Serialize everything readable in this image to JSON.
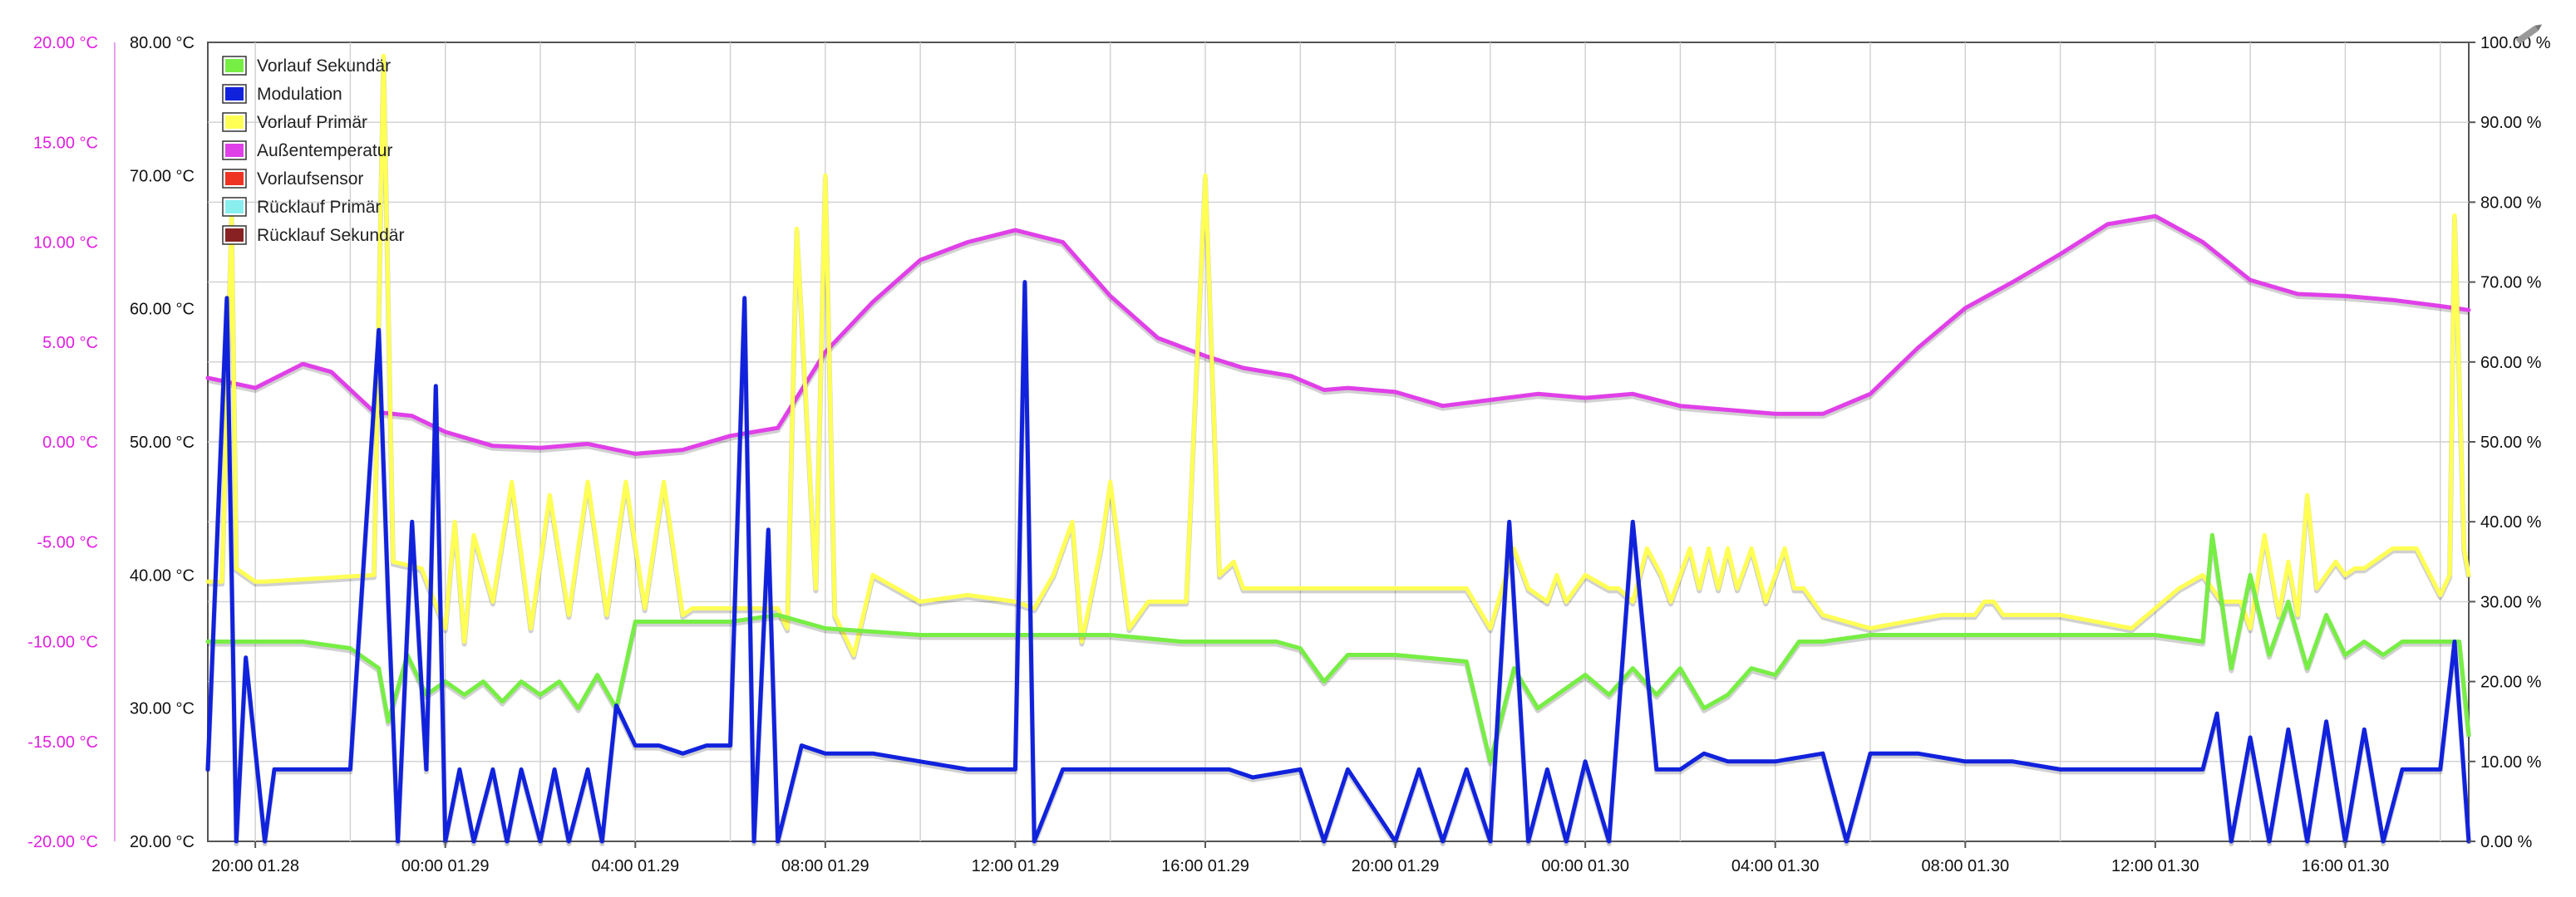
{
  "chart_data": {
    "type": "line",
    "title": "",
    "grid": true,
    "legend_placement": "top-left",
    "x_tick_labels": [
      "20:00 01.28",
      "00:00 01.29",
      "04:00 01.29",
      "08:00 01.29",
      "12:00 01.29",
      "16:00 01.29",
      "20:00 01.29",
      "00:00 01.30",
      "04:00 01.30",
      "08:00 01.30",
      "12:00 01.30",
      "16:00 01.30"
    ],
    "x_unit": "hours since 18:00 01.28",
    "xlim": [
      1.0,
      48.6
    ],
    "axes": {
      "outside_left": {
        "range": [
          -20,
          20
        ],
        "ticks": [
          "20.00 °C",
          "15.00 °C",
          "10.00 °C",
          "5.00 °C",
          "0.00 °C",
          "-5.00 °C",
          "-10.00 °C",
          "-15.00 °C",
          "-20.00 °C"
        ],
        "color": "#e020e0"
      },
      "inside_left": {
        "range": [
          20,
          80
        ],
        "ticks": [
          "80.00 °C",
          "70.00 °C",
          "60.00 °C",
          "50.00 °C",
          "40.00 °C",
          "30.00 °C",
          "20.00 °C"
        ]
      },
      "right": {
        "range": [
          0,
          100
        ],
        "ticks": [
          "100.00 %",
          "90.00 %",
          "80.00 %",
          "70.00 %",
          "60.00 %",
          "50.00 %",
          "40.00 %",
          "30.00 %",
          "20.00 %",
          "10.00 %",
          "0.00 %"
        ]
      }
    },
    "legend": [
      {
        "name": "Vorlauf Sekundär",
        "color": "#77ee44"
      },
      {
        "name": "Modulation",
        "color": "#1122dd"
      },
      {
        "name": "Vorlauf Primär",
        "color": "#ffff55"
      },
      {
        "name": "Außentemperatur",
        "color": "#e040e8"
      },
      {
        "name": "Vorlaufsensor",
        "color": "#ee3322"
      },
      {
        "name": "Rücklauf Primär",
        "color": "#88eeee"
      },
      {
        "name": "Rücklauf Sekundär",
        "color": "#882222"
      }
    ],
    "series": [
      {
        "name": "Außentemperatur",
        "color": "#e040e8",
        "axis": "outside_left",
        "unit": "°C",
        "x": [
          1.0,
          2.0,
          3.0,
          3.6,
          4.5,
          5.3,
          6.0,
          7.0,
          8.0,
          9.0,
          10.0,
          11.0,
          12.0,
          13.0,
          14.0,
          15.0,
          16.0,
          17.0,
          18.0,
          19.0,
          20.0,
          21.0,
          22.0,
          22.8,
          23.8,
          24.5,
          25.0,
          26.0,
          27.0,
          28.0,
          29.0,
          30.0,
          31.0,
          32.0,
          33.0,
          34.0,
          35.0,
          36.0,
          37.0,
          38.0,
          39.0,
          40.0,
          41.0,
          42.0,
          43.0,
          44.0,
          45.0,
          46.0,
          47.0,
          48.0,
          48.6
        ],
        "y": [
          3.2,
          2.7,
          3.9,
          3.5,
          1.5,
          1.3,
          0.5,
          -0.2,
          -0.3,
          -0.1,
          -0.6,
          -0.4,
          0.3,
          0.7,
          4.5,
          7.0,
          9.1,
          10.0,
          10.6,
          10.0,
          7.3,
          5.2,
          4.3,
          3.7,
          3.3,
          2.6,
          2.7,
          2.5,
          1.8,
          2.1,
          2.4,
          2.2,
          2.4,
          1.8,
          1.6,
          1.4,
          1.4,
          2.4,
          4.7,
          6.7,
          8.0,
          9.4,
          10.9,
          11.3,
          10.0,
          8.1,
          7.4,
          7.3,
          7.1,
          6.8,
          6.6
        ]
      },
      {
        "name": "Vorlauf Primär",
        "color": "#ffff55",
        "axis": "inside_left",
        "unit": "°C",
        "x": [
          1.0,
          1.3,
          1.5,
          1.6,
          1.8,
          2.0,
          2.2,
          4.5,
          4.7,
          4.9,
          5.5,
          6.0,
          6.2,
          6.4,
          6.6,
          7.0,
          7.4,
          7.8,
          8.2,
          8.6,
          9.0,
          9.4,
          9.8,
          10.2,
          10.6,
          11.0,
          11.2,
          11.5,
          12.0,
          12.5,
          13.0,
          13.2,
          13.4,
          13.8,
          14.0,
          14.2,
          14.6,
          15.0,
          16.0,
          17.0,
          18.0,
          18.4,
          18.8,
          19.2,
          19.4,
          19.8,
          20.0,
          20.4,
          20.8,
          21.2,
          21.6,
          22.0,
          22.3,
          22.6,
          22.8,
          22.9,
          23.0,
          23.2,
          23.4,
          23.5,
          23.6,
          23.8,
          24.5,
          26.0,
          27.5,
          28.0,
          28.5,
          28.8,
          29.2,
          29.4,
          29.6,
          30.0,
          30.5,
          30.7,
          31.0,
          31.3,
          31.6,
          31.8,
          32.2,
          32.4,
          32.6,
          32.8,
          33.0,
          33.2,
          33.5,
          33.8,
          34.2,
          34.4,
          34.6,
          34.8,
          35.0,
          36.0,
          37.5,
          38.2,
          38.4,
          38.6,
          38.8,
          39.0,
          40.0,
          41.5,
          42.5,
          43.0,
          43.2,
          43.4,
          43.6,
          43.8,
          44.0,
          44.3,
          44.6,
          44.8,
          45.0,
          45.2,
          45.4,
          45.6,
          45.8,
          46.0,
          46.2,
          46.4,
          46.6,
          46.8,
          47.0,
          47.5,
          48.0,
          48.2,
          48.3,
          48.5,
          48.6
        ],
        "y": [
          39.5,
          39.5,
          67,
          40.5,
          40,
          39.5,
          39.5,
          40,
          79,
          41,
          40.5,
          36,
          44,
          35,
          43,
          38,
          47,
          36,
          46,
          37,
          47,
          37,
          47,
          37.5,
          47,
          37,
          37.5,
          37.5,
          37.5,
          37.5,
          37.5,
          36,
          66,
          39,
          70,
          37,
          34,
          40,
          38,
          38.5,
          38,
          37.5,
          40,
          44,
          35,
          42,
          47,
          36,
          38,
          38,
          38,
          70,
          40,
          41,
          39,
          39,
          39,
          39,
          39,
          39,
          39,
          39,
          39,
          39,
          39,
          36,
          42,
          39,
          38,
          40,
          38,
          40,
          39,
          39,
          38,
          42,
          40,
          38,
          42,
          39,
          42,
          39,
          42,
          39,
          42,
          38,
          42,
          39,
          39,
          38,
          37,
          36,
          37,
          37,
          38,
          38,
          37,
          37,
          37,
          36,
          39,
          40,
          39,
          38,
          38,
          38,
          36,
          43,
          37,
          41,
          37,
          46,
          39,
          40,
          41,
          40,
          40.5,
          40.5,
          41,
          41.5,
          42,
          42,
          38.5,
          40,
          67,
          42,
          40
        ]
      },
      {
        "name": "Vorlauf Sekundär",
        "color": "#77ee44",
        "axis": "inside_left",
        "unit": "°C",
        "x": [
          1.0,
          2.0,
          3.0,
          4.0,
          4.6,
          4.8,
          5.2,
          5.6,
          6.0,
          6.4,
          6.8,
          7.2,
          7.6,
          8.0,
          8.4,
          8.8,
          9.2,
          9.6,
          10.0,
          11.0,
          12.0,
          13.0,
          14.0,
          16.0,
          18.0,
          19.0,
          20.0,
          21.5,
          22.8,
          23.2,
          23.5,
          24.0,
          24.5,
          25.0,
          26.0,
          27.5,
          28.0,
          28.5,
          29.0,
          30.0,
          30.5,
          31.0,
          31.5,
          32.0,
          32.5,
          33.0,
          33.5,
          34.0,
          34.5,
          35.0,
          36.0,
          37.0,
          38.0,
          39.0,
          40.0,
          41.0,
          42.0,
          43.0,
          43.2,
          43.6,
          44.0,
          44.4,
          44.8,
          45.2,
          45.6,
          46.0,
          46.4,
          46.8,
          47.2,
          47.6,
          48.0,
          48.4,
          48.6
        ],
        "y": [
          35,
          35,
          35,
          34.5,
          33,
          29,
          34,
          31,
          32,
          31,
          32,
          30.5,
          32,
          31,
          32,
          30,
          32.5,
          30,
          36.5,
          36.5,
          36.5,
          37,
          36,
          35.5,
          35.5,
          35.5,
          35.5,
          35,
          35,
          35,
          35,
          34.5,
          32,
          34,
          34,
          33.5,
          26,
          33,
          30,
          32.5,
          31,
          33,
          31,
          33,
          30,
          31,
          33,
          32.5,
          35,
          35,
          35.5,
          35.5,
          35.5,
          35.5,
          35.5,
          35.5,
          35.5,
          35,
          43,
          33,
          40,
          34,
          38,
          33,
          37,
          34,
          35,
          34,
          35,
          35,
          35,
          35,
          28
        ]
      },
      {
        "name": "Modulation",
        "color": "#1122dd",
        "axis": "right",
        "unit": "%",
        "x": [
          1.0,
          1.4,
          1.6,
          1.8,
          2.2,
          2.4,
          2.8,
          3.5,
          4.0,
          4.6,
          4.8,
          5.0,
          5.3,
          5.6,
          5.8,
          6.0,
          6.3,
          6.6,
          7.0,
          7.3,
          7.6,
          8.0,
          8.3,
          8.6,
          9.0,
          9.3,
          9.6,
          10.0,
          10.5,
          11.0,
          11.5,
          12.0,
          12.3,
          12.5,
          12.8,
          13.0,
          13.5,
          14.0,
          15.0,
          16.0,
          17.0,
          18.0,
          18.2,
          18.4,
          19.0,
          20.0,
          21.0,
          22.5,
          23.0,
          24.0,
          24.5,
          25.0,
          26.0,
          26.5,
          27.0,
          27.5,
          28.0,
          28.4,
          28.8,
          29.2,
          29.6,
          30.0,
          30.5,
          31.0,
          31.5,
          32.0,
          32.5,
          33.0,
          34.0,
          35.0,
          35.5,
          36.0,
          37.0,
          38.0,
          39.0,
          40.0,
          41.0,
          42.0,
          43.0,
          43.3,
          43.6,
          44.0,
          44.4,
          44.8,
          45.2,
          45.6,
          46.0,
          46.4,
          46.8,
          47.2,
          47.6,
          48.0,
          48.3,
          48.6
        ],
        "y": [
          9,
          68,
          0,
          23,
          0,
          9,
          9,
          9,
          9,
          64,
          30,
          0,
          40,
          9,
          57,
          0,
          9,
          0,
          9,
          0,
          9,
          0,
          9,
          0,
          9,
          0,
          17,
          12,
          12,
          11,
          12,
          12,
          68,
          0,
          39,
          0,
          12,
          11,
          11,
          10,
          9,
          9,
          70,
          0,
          9,
          9,
          9,
          9,
          8,
          9,
          0,
          9,
          0,
          9,
          0,
          9,
          0,
          40,
          0,
          9,
          0,
          10,
          0,
          40,
          9,
          9,
          11,
          10,
          10,
          11,
          0,
          11,
          11,
          10,
          10,
          9,
          9,
          9,
          9,
          16,
          0,
          13,
          0,
          14,
          0,
          15,
          0,
          14,
          0,
          9,
          9,
          9,
          25,
          0
        ]
      }
    ]
  }
}
